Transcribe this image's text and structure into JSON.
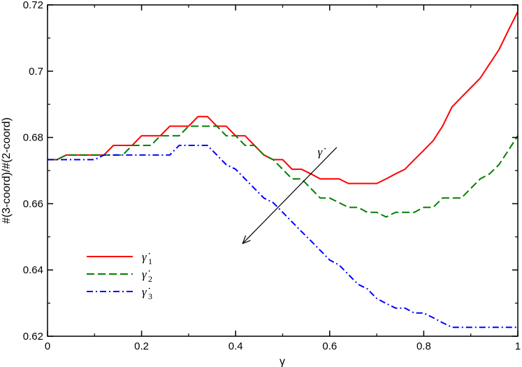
{
  "chart_data": {
    "type": "line",
    "title": "",
    "xlabel": "γ",
    "ylabel": "#(3-coord)/#(2-coord)",
    "xlim": [
      0,
      1
    ],
    "ylim": [
      0.62,
      0.72
    ],
    "grid": false,
    "legend_position": "lower-left",
    "x_ticks": [
      {
        "value": 0,
        "label": "0"
      },
      {
        "value": 0.2,
        "label": "0.2"
      },
      {
        "value": 0.4,
        "label": "0.4"
      },
      {
        "value": 0.6,
        "label": "0.6"
      },
      {
        "value": 0.8,
        "label": "0.8"
      },
      {
        "value": 1,
        "label": "1"
      }
    ],
    "y_ticks": [
      {
        "value": 0.62,
        "label": "0.62"
      },
      {
        "value": 0.64,
        "label": "0.64"
      },
      {
        "value": 0.66,
        "label": "0.66"
      },
      {
        "value": 0.68,
        "label": "0.68"
      },
      {
        "value": 0.7,
        "label": "0.7"
      },
      {
        "value": 0.72,
        "label": "0.72"
      }
    ],
    "series": [
      {
        "name": "γ̇",
        "subscript": "1",
        "color": "#ff0000",
        "dash": "solid",
        "x": [
          0,
          0.02,
          0.04,
          0.06,
          0.08,
          0.1,
          0.12,
          0.14,
          0.16,
          0.18,
          0.2,
          0.22,
          0.24,
          0.26,
          0.28,
          0.3,
          0.32,
          0.34,
          0.36,
          0.38,
          0.4,
          0.42,
          0.44,
          0.46,
          0.48,
          0.5,
          0.52,
          0.54,
          0.56,
          0.58,
          0.6,
          0.62,
          0.64,
          0.66,
          0.68,
          0.7,
          0.72,
          0.74,
          0.76,
          0.78,
          0.8,
          0.82,
          0.84,
          0.86,
          0.88,
          0.9,
          0.92,
          0.94,
          0.96,
          0.98,
          1.0
        ],
        "y": [
          0.6733,
          0.6733,
          0.6747,
          0.6747,
          0.6747,
          0.6747,
          0.6747,
          0.6776,
          0.6776,
          0.6776,
          0.6805,
          0.6805,
          0.6805,
          0.6834,
          0.6834,
          0.6834,
          0.6863,
          0.6863,
          0.6834,
          0.6834,
          0.6805,
          0.6805,
          0.6776,
          0.6747,
          0.6733,
          0.6733,
          0.6704,
          0.6704,
          0.669,
          0.6675,
          0.6675,
          0.6675,
          0.6661,
          0.6661,
          0.6661,
          0.6661,
          0.6675,
          0.669,
          0.6704,
          0.6733,
          0.6761,
          0.679,
          0.6834,
          0.6892,
          0.6921,
          0.695,
          0.6979,
          0.7022,
          0.7065,
          0.7123,
          0.718
        ]
      },
      {
        "name": "γ̇",
        "subscript": "2",
        "color": "#008000",
        "dash": "dashed",
        "x": [
          0,
          0.02,
          0.04,
          0.06,
          0.08,
          0.1,
          0.12,
          0.14,
          0.16,
          0.18,
          0.2,
          0.22,
          0.24,
          0.26,
          0.28,
          0.3,
          0.32,
          0.34,
          0.36,
          0.38,
          0.4,
          0.42,
          0.44,
          0.46,
          0.48,
          0.5,
          0.52,
          0.54,
          0.56,
          0.58,
          0.6,
          0.62,
          0.64,
          0.66,
          0.68,
          0.7,
          0.72,
          0.74,
          0.76,
          0.78,
          0.8,
          0.82,
          0.84,
          0.86,
          0.88,
          0.9,
          0.92,
          0.94,
          0.96,
          0.98,
          1.0
        ],
        "y": [
          0.6733,
          0.6733,
          0.6747,
          0.6747,
          0.6747,
          0.6747,
          0.6747,
          0.6747,
          0.6747,
          0.6776,
          0.6776,
          0.6776,
          0.6805,
          0.6805,
          0.6805,
          0.6834,
          0.6834,
          0.6834,
          0.6834,
          0.6805,
          0.6805,
          0.6776,
          0.6776,
          0.6747,
          0.6733,
          0.6704,
          0.6675,
          0.6675,
          0.6646,
          0.6617,
          0.6617,
          0.6603,
          0.6589,
          0.6589,
          0.6574,
          0.6574,
          0.656,
          0.6574,
          0.6574,
          0.6574,
          0.6589,
          0.6589,
          0.6617,
          0.6617,
          0.6617,
          0.6646,
          0.6675,
          0.669,
          0.6718,
          0.6761,
          0.6805
        ]
      },
      {
        "name": "γ̇",
        "subscript": "3",
        "color": "#0000ff",
        "dash": "dashdot",
        "x": [
          0,
          0.02,
          0.04,
          0.06,
          0.08,
          0.1,
          0.12,
          0.14,
          0.16,
          0.18,
          0.2,
          0.22,
          0.24,
          0.26,
          0.28,
          0.3,
          0.32,
          0.34,
          0.36,
          0.38,
          0.4,
          0.42,
          0.44,
          0.46,
          0.48,
          0.5,
          0.52,
          0.54,
          0.56,
          0.58,
          0.6,
          0.62,
          0.64,
          0.66,
          0.68,
          0.7,
          0.72,
          0.74,
          0.76,
          0.78,
          0.8,
          0.82,
          0.84,
          0.86,
          0.88,
          0.9,
          0.92,
          0.94,
          0.96,
          0.98,
          1.0
        ],
        "y": [
          0.6733,
          0.6733,
          0.6733,
          0.6733,
          0.6733,
          0.6733,
          0.6747,
          0.6747,
          0.6747,
          0.6747,
          0.6747,
          0.6747,
          0.6747,
          0.6747,
          0.6776,
          0.6776,
          0.6776,
          0.6776,
          0.6747,
          0.6718,
          0.6704,
          0.6675,
          0.6646,
          0.6617,
          0.6603,
          0.6574,
          0.6545,
          0.6516,
          0.6488,
          0.6459,
          0.643,
          0.6415,
          0.6386,
          0.6357,
          0.6343,
          0.6314,
          0.6299,
          0.6285,
          0.6285,
          0.627,
          0.627,
          0.6256,
          0.6241,
          0.6227,
          0.6227,
          0.6227,
          0.6227,
          0.6227,
          0.6227,
          0.6227,
          0.6227
        ]
      }
    ],
    "annotation": {
      "label": "γ̇",
      "from": {
        "x": 0.615,
        "y": 0.677
      },
      "to": {
        "x": 0.415,
        "y": 0.648
      }
    }
  }
}
